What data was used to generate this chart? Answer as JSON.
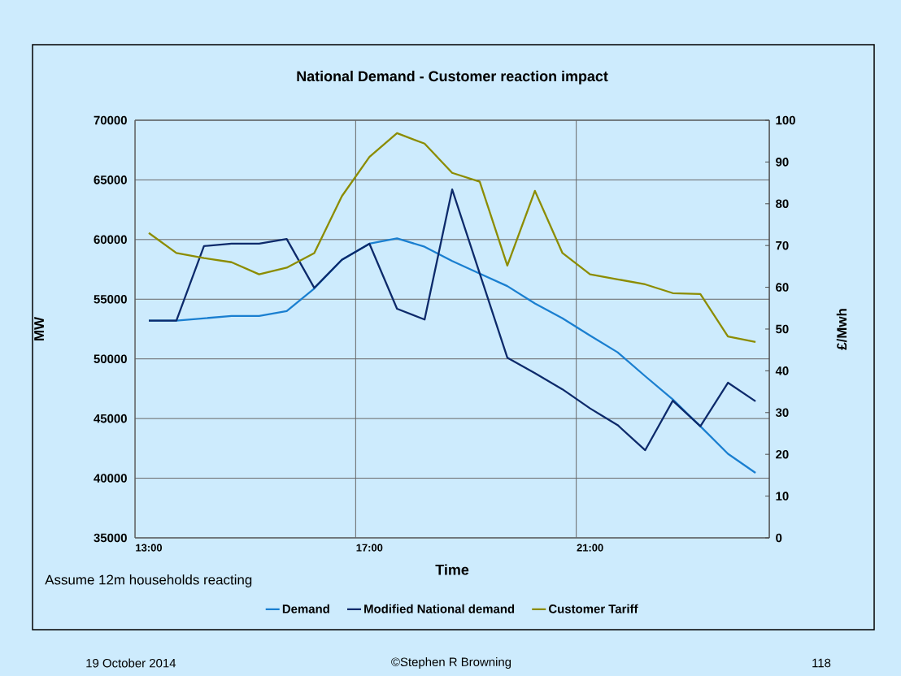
{
  "chart_data": {
    "type": "line",
    "title": "National Demand - Customer reaction impact",
    "xlabel": "Time",
    "ylabel": "MW",
    "y2label": "£/Mwh",
    "categories": [
      "13:00",
      null,
      null,
      null,
      null,
      null,
      null,
      null,
      "17:00",
      null,
      null,
      null,
      null,
      null,
      null,
      null,
      "21:00",
      null,
      null,
      null,
      null,
      null,
      null
    ],
    "series": [
      {
        "name": "Demand",
        "color": "#1a7fd0",
        "values": [
          53200,
          53200,
          53400,
          53600,
          53600,
          54000,
          55900,
          58300,
          59650,
          60100,
          59400,
          58200,
          57150,
          56100,
          54650,
          53400,
          51950,
          50550,
          48550,
          46600,
          44350,
          42050,
          40450
        ]
      },
      {
        "name": "Modified National demand",
        "color": "#0d2a6b",
        "values": [
          53200,
          53200,
          59450,
          59650,
          59650,
          60050,
          55950,
          58300,
          59650,
          54200,
          53300,
          64200,
          57150,
          50100,
          48800,
          47450,
          45850,
          44450,
          42350,
          46500,
          44350,
          48000,
          46450
        ]
      },
      {
        "name": "Customer Tariff",
        "color": "#8c8c00",
        "axis": "y2",
        "values": [
          73.0,
          68.2,
          67.0,
          66.0,
          63.1,
          64.7,
          68.2,
          81.8,
          91.2,
          96.9,
          94.4,
          87.4,
          85.3,
          65.2,
          83.1,
          68.2,
          63.1,
          61.9,
          60.7,
          58.6,
          58.4,
          48.2,
          46.9
        ]
      }
    ],
    "ylim": [
      35000,
      70000
    ],
    "yticks": [
      35000,
      40000,
      45000,
      50000,
      55000,
      60000,
      65000,
      70000
    ],
    "y2lim": [
      0,
      100
    ],
    "y2ticks": [
      0,
      10,
      20,
      30,
      40,
      50,
      60,
      70,
      80,
      90,
      100
    ],
    "grid": true,
    "legend": "bottom",
    "marker": "none",
    "line_style": "solid",
    "annotations": [
      "Assume 12m households reacting",
      "19 October 2014",
      "©Stephen R Browning",
      "118"
    ]
  }
}
